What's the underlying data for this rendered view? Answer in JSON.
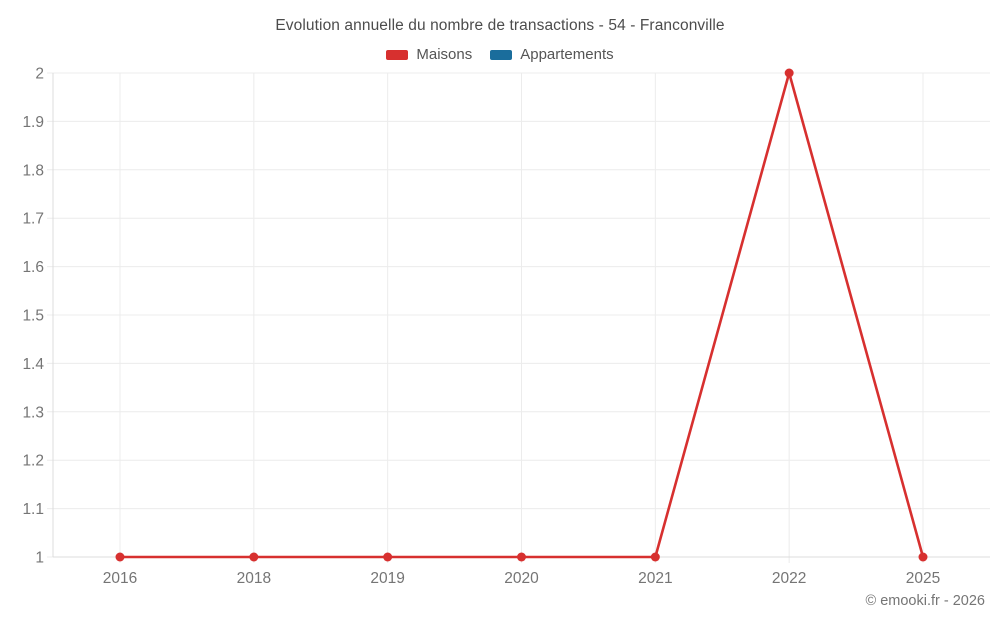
{
  "page": {
    "background": "#ffffff"
  },
  "header": {
    "title": "Evolution annuelle du nombre de transactions - 54 - Franconville"
  },
  "legend": [
    {
      "label": "Maisons",
      "color": "#d7302f"
    },
    {
      "label": "Appartements",
      "color": "#1a6d9c"
    }
  ],
  "footer": {
    "credit": "© emooki.fr - 2026"
  },
  "colors": {
    "grid": "#ececec",
    "axis": "#dcdcdc",
    "tick_label": "#757575",
    "title": "#4c4c4c",
    "maisons": "#d7302f",
    "appartements": "#1a6d9c"
  },
  "chart_data": {
    "type": "line",
    "title": "Evolution annuelle du nombre de transactions - 54 - Franconville",
    "categories": [
      "2016",
      "2018",
      "2019",
      "2020",
      "2021",
      "2022",
      "2025"
    ],
    "series": [
      {
        "name": "Maisons",
        "color": "#d7302f",
        "values": [
          1,
          1,
          1,
          1,
          1,
          2,
          1
        ]
      },
      {
        "name": "Appartements",
        "color": "#1a6d9c",
        "values": [
          null,
          null,
          null,
          null,
          null,
          null,
          null
        ]
      }
    ],
    "xlabel": "",
    "ylabel": "",
    "ylim": [
      1,
      2
    ],
    "yticks": [
      1,
      1.1,
      1.2,
      1.3,
      1.4,
      1.5,
      1.6,
      1.7,
      1.8,
      1.9,
      2
    ],
    "ytick_labels": [
      "1",
      "1.1",
      "1.2",
      "1.3",
      "1.4",
      "1.5",
      "1.6",
      "1.7",
      "1.8",
      "1.9",
      "2"
    ],
    "grid": true,
    "legend_position": "top"
  }
}
